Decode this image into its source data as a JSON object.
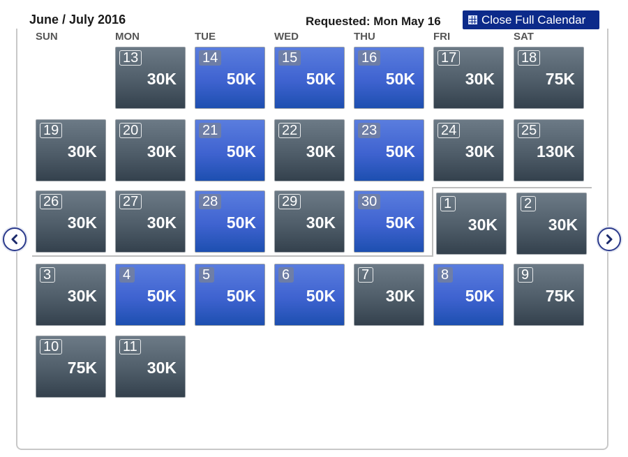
{
  "header": {
    "title": "June / July 2016",
    "requested": "Requested: Mon May 16",
    "close_label": "Close Full Calendar"
  },
  "weekdays": [
    "SUN",
    "MON",
    "TUE",
    "WED",
    "THU",
    "FRI",
    "SAT"
  ],
  "colors": {
    "gray_cell": "#4f5d69",
    "blue_cell": "#3f63d0",
    "button_bg": "#0c2a8a"
  },
  "weeks": [
    [
      null,
      {
        "day": "13",
        "price": "30K",
        "style": "gray"
      },
      {
        "day": "14",
        "price": "50K",
        "style": "blue"
      },
      {
        "day": "15",
        "price": "50K",
        "style": "blue"
      },
      {
        "day": "16",
        "price": "50K",
        "style": "blue"
      },
      {
        "day": "17",
        "price": "30K",
        "style": "gray"
      },
      {
        "day": "18",
        "price": "75K",
        "style": "gray"
      }
    ],
    [
      {
        "day": "19",
        "price": "30K",
        "style": "gray"
      },
      {
        "day": "20",
        "price": "30K",
        "style": "gray"
      },
      {
        "day": "21",
        "price": "50K",
        "style": "blue"
      },
      {
        "day": "22",
        "price": "30K",
        "style": "gray"
      },
      {
        "day": "23",
        "price": "50K",
        "style": "blue"
      },
      {
        "day": "24",
        "price": "30K",
        "style": "gray"
      },
      {
        "day": "25",
        "price": "130K",
        "style": "gray"
      }
    ],
    [
      {
        "day": "26",
        "price": "30K",
        "style": "gray"
      },
      {
        "day": "27",
        "price": "30K",
        "style": "gray"
      },
      {
        "day": "28",
        "price": "50K",
        "style": "blue"
      },
      {
        "day": "29",
        "price": "30K",
        "style": "gray"
      },
      {
        "day": "30",
        "price": "50K",
        "style": "blue"
      },
      {
        "day": "1",
        "price": "30K",
        "style": "gray"
      },
      {
        "day": "2",
        "price": "30K",
        "style": "gray"
      }
    ],
    [
      {
        "day": "3",
        "price": "30K",
        "style": "gray"
      },
      {
        "day": "4",
        "price": "50K",
        "style": "blue"
      },
      {
        "day": "5",
        "price": "50K",
        "style": "blue"
      },
      {
        "day": "6",
        "price": "50K",
        "style": "blue"
      },
      {
        "day": "7",
        "price": "30K",
        "style": "gray"
      },
      {
        "day": "8",
        "price": "50K",
        "style": "blue"
      },
      {
        "day": "9",
        "price": "75K",
        "style": "gray"
      }
    ],
    [
      {
        "day": "10",
        "price": "75K",
        "style": "gray"
      },
      {
        "day": "11",
        "price": "30K",
        "style": "gray"
      },
      null,
      null,
      null,
      null,
      null
    ]
  ],
  "nav": {
    "prev_icon": "chevron-left-icon",
    "next_icon": "chevron-right-icon"
  }
}
